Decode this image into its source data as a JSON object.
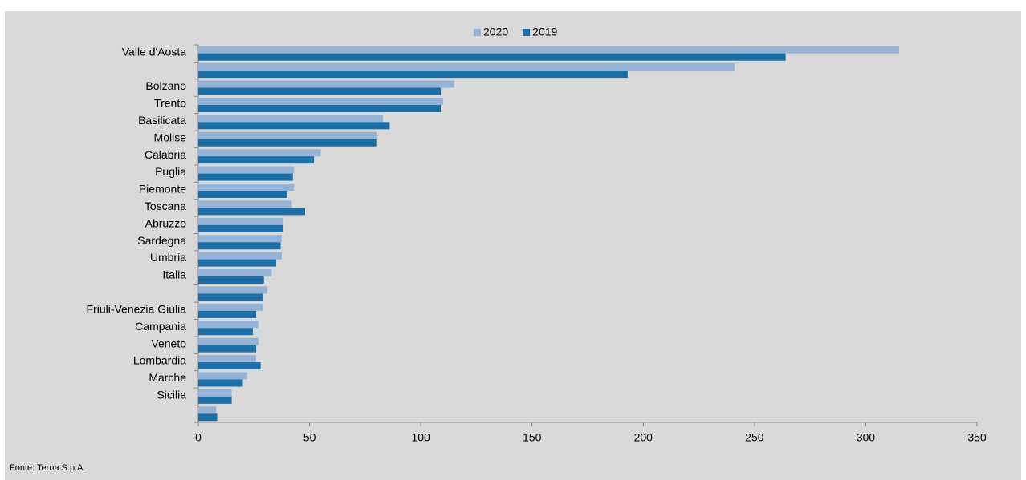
{
  "chart_data": {
    "type": "hbar",
    "categories": [
      "Valle d'Aosta",
      null,
      "Bolzano",
      "Trento",
      "Basilicata",
      "Molise",
      "Calabria",
      "Puglia",
      "Piemonte",
      "Toscana",
      "Abruzzo",
      "Sardegna",
      "Umbria",
      "Italia",
      null,
      "Friuli-Venezia Giulia",
      "Campania",
      "Veneto",
      "Lombardia",
      "Marche",
      "Sicilia",
      null
    ],
    "series": [
      {
        "name": "2020",
        "color": "#95b3d7",
        "values": [
          315,
          241,
          115,
          110,
          83,
          80,
          55,
          43,
          43,
          42,
          38,
          37.5,
          37.5,
          33,
          31,
          29,
          27,
          27,
          26,
          22,
          15,
          8
        ]
      },
      {
        "name": "2019",
        "color": "#1b6fa6",
        "values": [
          264,
          193,
          109,
          109,
          86,
          80,
          52,
          42.5,
          40,
          48,
          38,
          37,
          35,
          29.5,
          29,
          26,
          24.5,
          26,
          28,
          20,
          15,
          8.5
        ]
      }
    ],
    "xlim": [
      0,
      350
    ],
    "xticks": [
      0,
      50,
      100,
      150,
      200,
      250,
      300,
      350
    ],
    "legend": "top",
    "grid": false,
    "source": "Fonte: Terna S.p.A."
  }
}
